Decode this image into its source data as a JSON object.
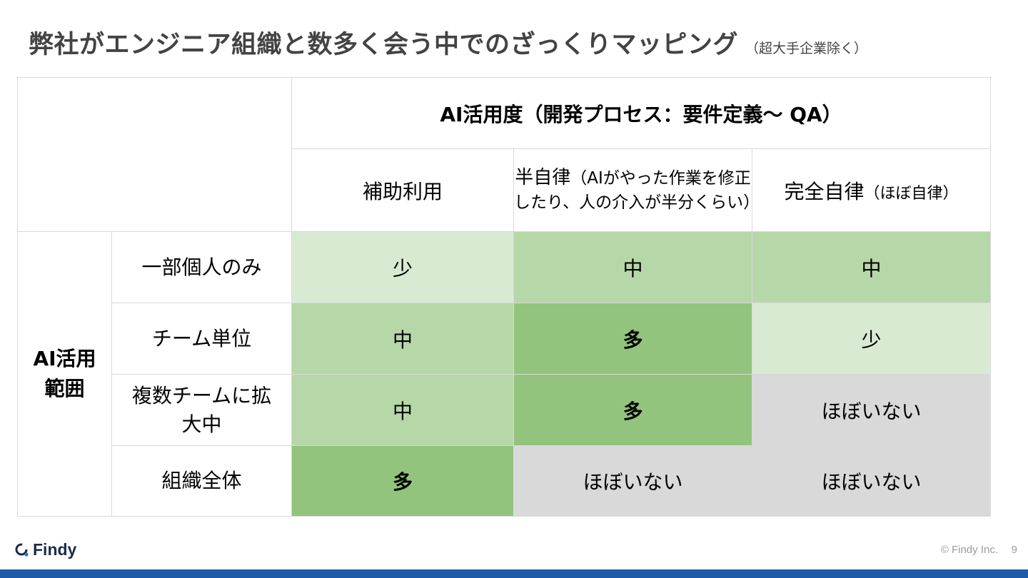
{
  "title": {
    "main": "弊社がエンジニア組織と数多く会う中でのざっくりマッピング",
    "note": "（超大手企業除く）"
  },
  "matrix": {
    "col_header": "AI活用度（開発プロセス：要件定義〜 QA）",
    "columns": [
      {
        "label": "補助利用",
        "note": ""
      },
      {
        "label": "半自律",
        "note": "（AIがやった作業を修正したり、人の介入が半分くらい）"
      },
      {
        "label": "完全自律",
        "note": "（ほぼ自律）"
      }
    ],
    "row_header": "AI活用範囲",
    "rows": [
      {
        "label": "一部個人のみ",
        "cells": [
          "少",
          "中",
          "中"
        ],
        "levels": [
          "low",
          "mid",
          "mid"
        ]
      },
      {
        "label": "チーム単位",
        "cells": [
          "中",
          "多",
          "少"
        ],
        "levels": [
          "mid",
          "high",
          "low"
        ]
      },
      {
        "label": "複数チームに拡大中",
        "cells": [
          "中",
          "多",
          "ほぼいない"
        ],
        "levels": [
          "mid",
          "high",
          "none"
        ]
      },
      {
        "label": "組織全体",
        "cells": [
          "多",
          "ほぼいない",
          "ほぼいない"
        ],
        "levels": [
          "high",
          "none",
          "none"
        ]
      }
    ],
    "level_colors": {
      "low": "#d9ead3",
      "mid": "#b6d7a8",
      "high": "#93c47d",
      "none": "#d9d9d9"
    }
  },
  "footer": {
    "logo_text": "Findy",
    "copyright": "© Findy Inc.",
    "page_number": "9",
    "bar_color": "#1d5ba8"
  }
}
